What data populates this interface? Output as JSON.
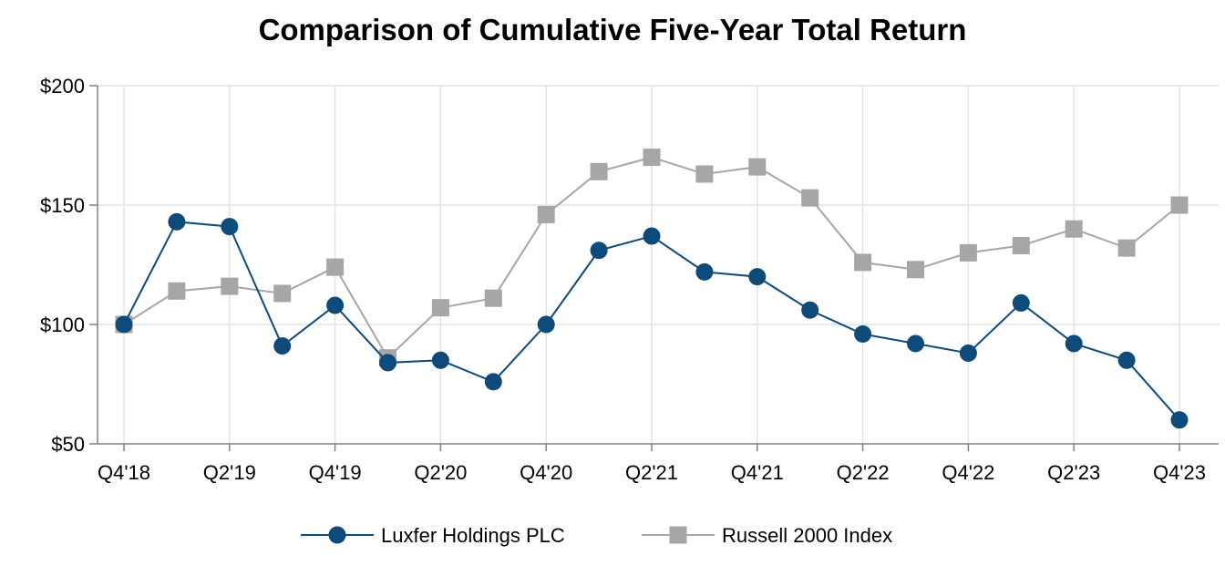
{
  "chart_data": {
    "type": "line",
    "title": "Comparison of Cumulative Five-Year Total Return",
    "xlabel": "",
    "ylabel": "",
    "ylim": [
      50,
      200
    ],
    "yticks": [
      50,
      100,
      150,
      200
    ],
    "ytick_labels": [
      "$50",
      "$100",
      "$150",
      "$200"
    ],
    "categories": [
      "Q4'18",
      "Q1'19",
      "Q2'19",
      "Q3'19",
      "Q4'19",
      "Q1'20",
      "Q2'20",
      "Q3'20",
      "Q4'20",
      "Q1'21",
      "Q2'21",
      "Q3'21",
      "Q4'21",
      "Q1'22",
      "Q2'22",
      "Q3'22",
      "Q4'22",
      "Q1'23",
      "Q2'23",
      "Q3'23",
      "Q4'23"
    ],
    "xtick_labels": [
      "Q4'18",
      "Q2'19",
      "Q4'19",
      "Q2'20",
      "Q4'20",
      "Q2'21",
      "Q4'21",
      "Q2'22",
      "Q4'22",
      "Q2'23",
      "Q4'23"
    ],
    "grid": true,
    "legend": "bottom",
    "series": [
      {
        "name": "Luxfer Holdings PLC",
        "color": "#0e4a7a",
        "marker": "circle",
        "values": [
          100,
          143,
          141,
          91,
          108,
          84,
          85,
          76,
          100,
          131,
          137,
          122,
          120,
          106,
          96,
          92,
          88,
          109,
          92,
          85,
          60
        ]
      },
      {
        "name": "Russell 2000 Index",
        "color": "#a6a6a6",
        "marker": "square",
        "values": [
          100,
          114,
          116,
          113,
          124,
          86,
          107,
          111,
          146,
          164,
          170,
          163,
          166,
          153,
          126,
          123,
          130,
          133,
          140,
          132,
          150
        ]
      }
    ]
  }
}
